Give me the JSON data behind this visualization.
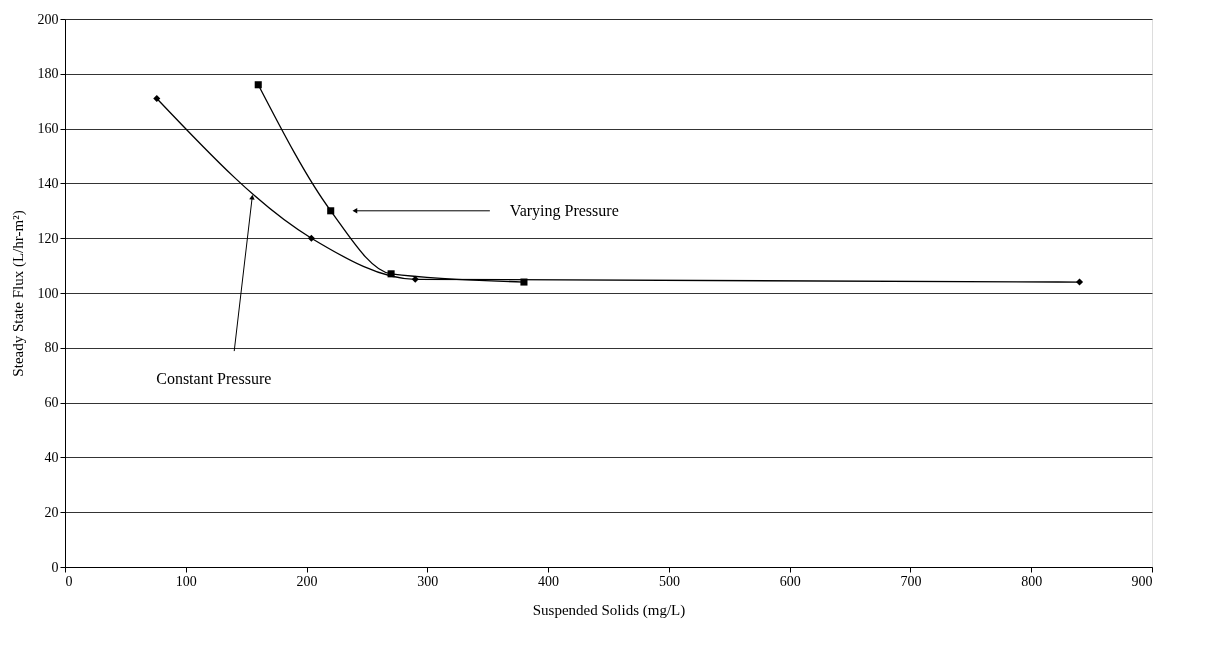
{
  "chart_data": {
    "type": "line",
    "xlabel": "Suspended Solids (mg/L)",
    "ylabel": "Steady State Flux (L/hr-m²)",
    "series": [
      {
        "color": "#000000",
        "marker": "diamond",
        "x": [
          76,
          204,
          290,
          840
        ],
        "values": [
          171,
          120,
          105,
          104
        ]
      },
      {
        "color": "#000000",
        "marker": "square",
        "x": [
          160,
          220,
          270,
          380
        ],
        "values": [
          176,
          130,
          107,
          104
        ]
      }
    ],
    "xlim": [
      0,
      900
    ],
    "xticks": [
      0,
      100,
      200,
      300,
      400,
      500,
      600,
      700,
      800,
      900
    ],
    "ylim": [
      0,
      200
    ],
    "yticks": [
      0,
      20,
      40,
      60,
      80,
      100,
      120,
      140,
      160,
      180,
      200
    ],
    "grid": "y",
    "line_style": "solid",
    "annotations": [
      {
        "text": "Varying Pressure",
        "x": 240,
        "y": 130
      },
      {
        "text": "Constant Pressure",
        "x": 155,
        "y": 135
      }
    ]
  }
}
